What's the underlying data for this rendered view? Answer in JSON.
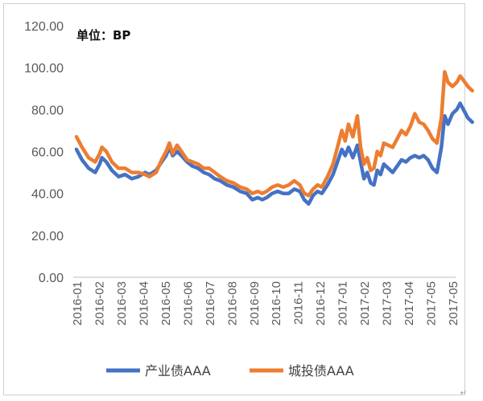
{
  "chart_data": {
    "type": "line",
    "unit_label": "单位：BP",
    "ylim": [
      0,
      120
    ],
    "y_ticks": [
      "0.00",
      "20.00",
      "40.00",
      "60.00",
      "80.00",
      "100.00",
      "120.00"
    ],
    "categories": [
      "2016-01",
      "2016-02",
      "2016-03",
      "2016-04",
      "2016-05",
      "2016-06",
      "2016-07",
      "2016-08",
      "2016-09",
      "2016-10",
      "2016-11",
      "2016-12",
      "2017-01",
      "2017-02",
      "2017-03",
      "2017-04",
      "2017-05",
      "2017-05"
    ],
    "legend_position": "bottom",
    "series": [
      {
        "name": "产业债AAA",
        "color": "#4472C4",
        "points": [
          [
            0.0,
            61
          ],
          [
            0.25,
            56
          ],
          [
            0.55,
            52
          ],
          [
            0.85,
            50
          ],
          [
            1.05,
            54
          ],
          [
            1.15,
            57
          ],
          [
            1.35,
            55
          ],
          [
            1.6,
            51
          ],
          [
            1.9,
            48
          ],
          [
            2.2,
            49
          ],
          [
            2.5,
            47
          ],
          [
            2.8,
            48
          ],
          [
            3.1,
            50
          ],
          [
            3.3,
            49
          ],
          [
            3.6,
            51
          ],
          [
            3.85,
            55
          ],
          [
            4.05,
            58
          ],
          [
            4.2,
            62
          ],
          [
            4.35,
            58
          ],
          [
            4.55,
            60
          ],
          [
            4.75,
            58
          ],
          [
            5.0,
            55
          ],
          [
            5.25,
            53
          ],
          [
            5.5,
            52
          ],
          [
            5.75,
            50
          ],
          [
            6.0,
            49
          ],
          [
            6.25,
            47
          ],
          [
            6.5,
            46
          ],
          [
            6.8,
            44
          ],
          [
            7.1,
            43
          ],
          [
            7.4,
            41
          ],
          [
            7.7,
            40
          ],
          [
            7.95,
            37
          ],
          [
            8.2,
            38
          ],
          [
            8.4,
            37
          ],
          [
            8.6,
            38
          ],
          [
            8.85,
            40
          ],
          [
            9.1,
            41
          ],
          [
            9.35,
            40
          ],
          [
            9.6,
            40
          ],
          [
            9.85,
            42
          ],
          [
            10.1,
            41
          ],
          [
            10.3,
            37
          ],
          [
            10.5,
            35
          ],
          [
            10.7,
            39
          ],
          [
            10.9,
            41
          ],
          [
            11.1,
            40
          ],
          [
            11.35,
            44
          ],
          [
            11.6,
            49
          ],
          [
            11.8,
            55
          ],
          [
            12.0,
            61
          ],
          [
            12.15,
            58
          ],
          [
            12.3,
            62
          ],
          [
            12.5,
            57
          ],
          [
            12.7,
            63
          ],
          [
            12.85,
            55
          ],
          [
            13.0,
            47
          ],
          [
            13.15,
            50
          ],
          [
            13.3,
            45
          ],
          [
            13.45,
            44
          ],
          [
            13.6,
            51
          ],
          [
            13.75,
            49
          ],
          [
            13.9,
            54
          ],
          [
            14.1,
            52
          ],
          [
            14.3,
            50
          ],
          [
            14.5,
            53
          ],
          [
            14.7,
            56
          ],
          [
            14.9,
            55
          ],
          [
            15.1,
            57
          ],
          [
            15.3,
            58
          ],
          [
            15.5,
            57
          ],
          [
            15.7,
            58
          ],
          [
            15.9,
            56
          ],
          [
            16.1,
            52
          ],
          [
            16.3,
            50
          ],
          [
            16.5,
            62
          ],
          [
            16.65,
            77
          ],
          [
            16.8,
            73
          ],
          [
            17.0,
            78
          ],
          [
            17.2,
            80
          ],
          [
            17.35,
            83
          ],
          [
            17.5,
            80
          ],
          [
            17.7,
            76
          ],
          [
            17.9,
            74
          ]
        ]
      },
      {
        "name": "城投债AAA",
        "color": "#ED7D31",
        "points": [
          [
            0.0,
            67
          ],
          [
            0.25,
            62
          ],
          [
            0.55,
            57
          ],
          [
            0.85,
            55
          ],
          [
            1.05,
            59
          ],
          [
            1.15,
            62
          ],
          [
            1.35,
            60
          ],
          [
            1.6,
            55
          ],
          [
            1.9,
            52
          ],
          [
            2.2,
            52
          ],
          [
            2.5,
            50
          ],
          [
            2.8,
            50
          ],
          [
            3.1,
            49
          ],
          [
            3.3,
            48
          ],
          [
            3.6,
            50
          ],
          [
            3.85,
            56
          ],
          [
            4.05,
            60
          ],
          [
            4.2,
            64
          ],
          [
            4.35,
            59
          ],
          [
            4.55,
            63
          ],
          [
            4.75,
            60
          ],
          [
            5.0,
            56
          ],
          [
            5.25,
            55
          ],
          [
            5.5,
            54
          ],
          [
            5.75,
            52
          ],
          [
            6.0,
            52
          ],
          [
            6.25,
            50
          ],
          [
            6.5,
            48
          ],
          [
            6.8,
            46
          ],
          [
            7.1,
            45
          ],
          [
            7.4,
            43
          ],
          [
            7.7,
            42
          ],
          [
            7.95,
            40
          ],
          [
            8.2,
            41
          ],
          [
            8.4,
            40
          ],
          [
            8.6,
            41
          ],
          [
            8.85,
            43
          ],
          [
            9.1,
            44
          ],
          [
            9.35,
            43
          ],
          [
            9.6,
            44
          ],
          [
            9.85,
            46
          ],
          [
            10.1,
            44
          ],
          [
            10.3,
            40
          ],
          [
            10.5,
            39
          ],
          [
            10.7,
            42
          ],
          [
            10.9,
            44
          ],
          [
            11.1,
            43
          ],
          [
            11.35,
            48
          ],
          [
            11.6,
            54
          ],
          [
            11.8,
            62
          ],
          [
            12.0,
            70
          ],
          [
            12.15,
            65
          ],
          [
            12.3,
            73
          ],
          [
            12.5,
            67
          ],
          [
            12.7,
            77
          ],
          [
            12.85,
            62
          ],
          [
            13.0,
            54
          ],
          [
            13.15,
            57
          ],
          [
            13.3,
            51
          ],
          [
            13.45,
            52
          ],
          [
            13.6,
            60
          ],
          [
            13.75,
            58
          ],
          [
            13.9,
            64
          ],
          [
            14.1,
            63
          ],
          [
            14.3,
            62
          ],
          [
            14.5,
            66
          ],
          [
            14.7,
            70
          ],
          [
            14.9,
            68
          ],
          [
            15.1,
            72
          ],
          [
            15.3,
            78
          ],
          [
            15.5,
            74
          ],
          [
            15.7,
            73
          ],
          [
            15.9,
            70
          ],
          [
            16.1,
            66
          ],
          [
            16.3,
            64
          ],
          [
            16.5,
            76
          ],
          [
            16.65,
            98
          ],
          [
            16.8,
            93
          ],
          [
            17.0,
            91
          ],
          [
            17.2,
            93
          ],
          [
            17.35,
            96
          ],
          [
            17.5,
            94
          ],
          [
            17.7,
            91
          ],
          [
            17.9,
            89
          ]
        ]
      }
    ]
  }
}
